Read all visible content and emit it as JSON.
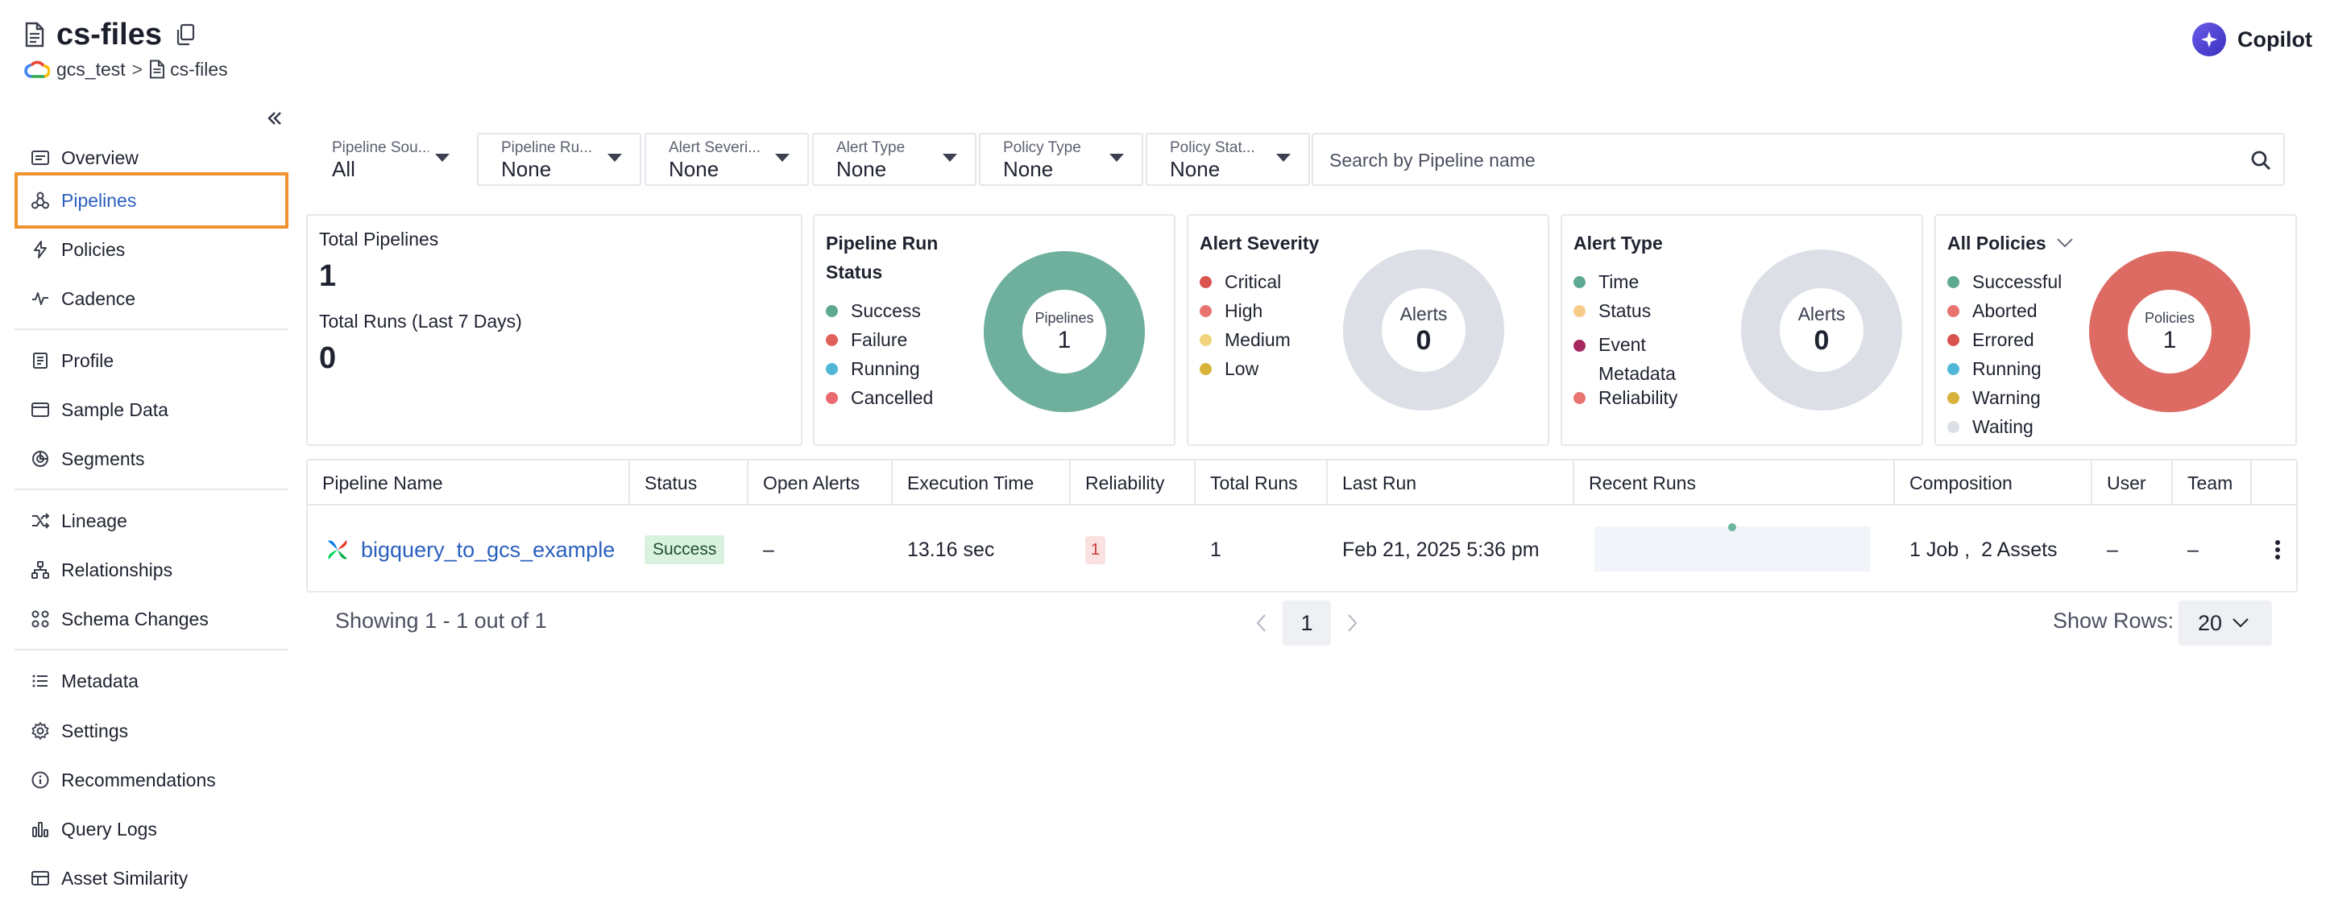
{
  "header": {
    "title": "cs-files",
    "breadcrumb": {
      "source": "gcs_test",
      "separator": ">",
      "current": "cs-files"
    },
    "copilot_label": "Copilot"
  },
  "sidebar": {
    "items": [
      {
        "label": "Overview",
        "icon": "overview-icon"
      },
      {
        "label": "Pipelines",
        "icon": "pipelines-icon",
        "active": true
      },
      {
        "label": "Policies",
        "icon": "policies-icon"
      },
      {
        "label": "Cadence",
        "icon": "cadence-icon"
      },
      {
        "label": "Profile",
        "icon": "profile-icon"
      },
      {
        "label": "Sample Data",
        "icon": "sample-data-icon"
      },
      {
        "label": "Segments",
        "icon": "segments-icon"
      },
      {
        "label": "Lineage",
        "icon": "lineage-icon"
      },
      {
        "label": "Relationships",
        "icon": "relationships-icon"
      },
      {
        "label": "Schema Changes",
        "icon": "schema-changes-icon"
      },
      {
        "label": "Metadata",
        "icon": "metadata-icon"
      },
      {
        "label": "Settings",
        "icon": "settings-icon"
      },
      {
        "label": "Recommendations",
        "icon": "recommendations-icon"
      },
      {
        "label": "Query Logs",
        "icon": "query-logs-icon"
      },
      {
        "label": "Asset Similarity",
        "icon": "asset-similarity-icon"
      }
    ]
  },
  "filters": [
    {
      "label": "Pipeline Sou...",
      "value": "All"
    },
    {
      "label": "Pipeline Ru...",
      "value": "None"
    },
    {
      "label": "Alert Severi...",
      "value": "None"
    },
    {
      "label": "Alert Type",
      "value": "None"
    },
    {
      "label": "Policy Type",
      "value": "None"
    },
    {
      "label": "Policy Stat...",
      "value": "None"
    }
  ],
  "search": {
    "placeholder": "Search by Pipeline name"
  },
  "summary": {
    "total_pipelines_label": "Total Pipelines",
    "total_pipelines_value": "1",
    "total_runs_label": "Total Runs (Last 7 Days)",
    "total_runs_value": "0"
  },
  "cards": {
    "run_status": {
      "title_line1": "Pipeline Run",
      "title_line2": "Status",
      "legend": [
        {
          "label": "Success",
          "color": "#5fa993"
        },
        {
          "label": "Failure",
          "color": "#e0605c"
        },
        {
          "label": "Running",
          "color": "#4fb6d6"
        },
        {
          "label": "Cancelled",
          "color": "#e96b70"
        }
      ],
      "donut_label": "Pipelines",
      "donut_value": "1",
      "ring_color": "#6eb09d"
    },
    "alert_severity": {
      "title": "Alert Severity",
      "legend": [
        {
          "label": "Critical",
          "color": "#d9534f"
        },
        {
          "label": "High",
          "color": "#e8736f"
        },
        {
          "label": "Medium",
          "color": "#f2d47d"
        },
        {
          "label": "Low",
          "color": "#d9b23c"
        }
      ],
      "donut_label": "Alerts",
      "donut_value": "0",
      "ring_color": "#dcdfe6"
    },
    "alert_type": {
      "title": "Alert Type",
      "legend": [
        {
          "label": "Time",
          "color": "#5fa993"
        },
        {
          "label": "Status",
          "color": "#f6cb87"
        },
        {
          "label": "Event Metadata",
          "line1": "Event",
          "line2": "Metadata",
          "color": "#a5285e"
        },
        {
          "label": "Reliability",
          "color": "#e8736f"
        }
      ],
      "donut_label": "Alerts",
      "donut_value": "0",
      "ring_color": "#dcdfe6"
    },
    "policies": {
      "title": "All Policies",
      "legend": [
        {
          "label": "Successful",
          "color": "#5fa993"
        },
        {
          "label": "Aborted",
          "color": "#e8736f"
        },
        {
          "label": "Errored",
          "color": "#d9534f"
        },
        {
          "label": "Running",
          "color": "#4fb6d6"
        },
        {
          "label": "Warning",
          "color": "#d9b23c"
        },
        {
          "label": "Waiting",
          "color": "#dcdfe6"
        }
      ],
      "donut_label": "Policies",
      "donut_value": "1",
      "ring_color": "#dd6b64"
    }
  },
  "table": {
    "columns": [
      "Pipeline Name",
      "Status",
      "Open Alerts",
      "Execution Time",
      "Reliability",
      "Total Runs",
      "Last Run",
      "Recent Runs",
      "Composition",
      "User",
      "Team"
    ],
    "rows": [
      {
        "pipeline_name": "bigquery_to_gcs_example",
        "status": "Success",
        "open_alerts": "–",
        "execution_time": "13.16 sec",
        "reliability": "1",
        "total_runs": "1",
        "last_run": "Feb 21, 2025 5:36 pm",
        "recent_runs": [
          {
            "status": "Success"
          }
        ],
        "composition_jobs": "1 Job ,",
        "composition_assets": "2 Assets",
        "user": "–",
        "team": "–"
      }
    ]
  },
  "pagination": {
    "showing": "Showing 1 - 1 out of 1",
    "current_page": "1",
    "show_rows_label": "Show Rows:",
    "rows_per_page": "20"
  },
  "colors": {
    "accent_link": "#2a5fbd",
    "active_outline": "#f0932f"
  }
}
